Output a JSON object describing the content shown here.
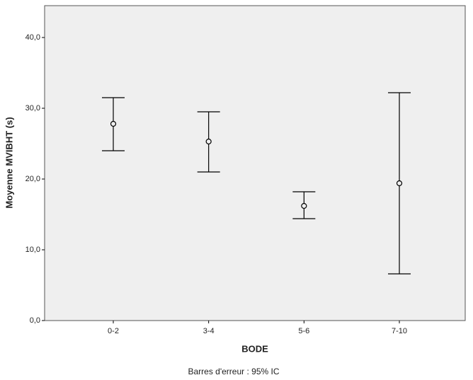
{
  "chart_data": {
    "type": "errorbar",
    "xlabel": "BODE",
    "ylabel": "Moyenne MVIBHT (s)",
    "note": "Barres d'erreur : 95% IC",
    "categories": [
      "0-2",
      "3-4",
      "5-6",
      "7-10"
    ],
    "values": [
      27.8,
      25.3,
      16.2,
      19.4
    ],
    "lower": [
      24.0,
      21.0,
      14.4,
      6.6
    ],
    "upper": [
      31.5,
      29.5,
      18.2,
      32.2
    ],
    "color": "#000000",
    "ylim": [
      0,
      44.5
    ],
    "yticks": [
      {
        "value": 0,
        "label": "0,0"
      },
      {
        "value": 10,
        "label": "10,0"
      },
      {
        "value": 20,
        "label": "20,0"
      },
      {
        "value": 30,
        "label": "30,0"
      },
      {
        "value": 40,
        "label": "40,0"
      }
    ]
  }
}
